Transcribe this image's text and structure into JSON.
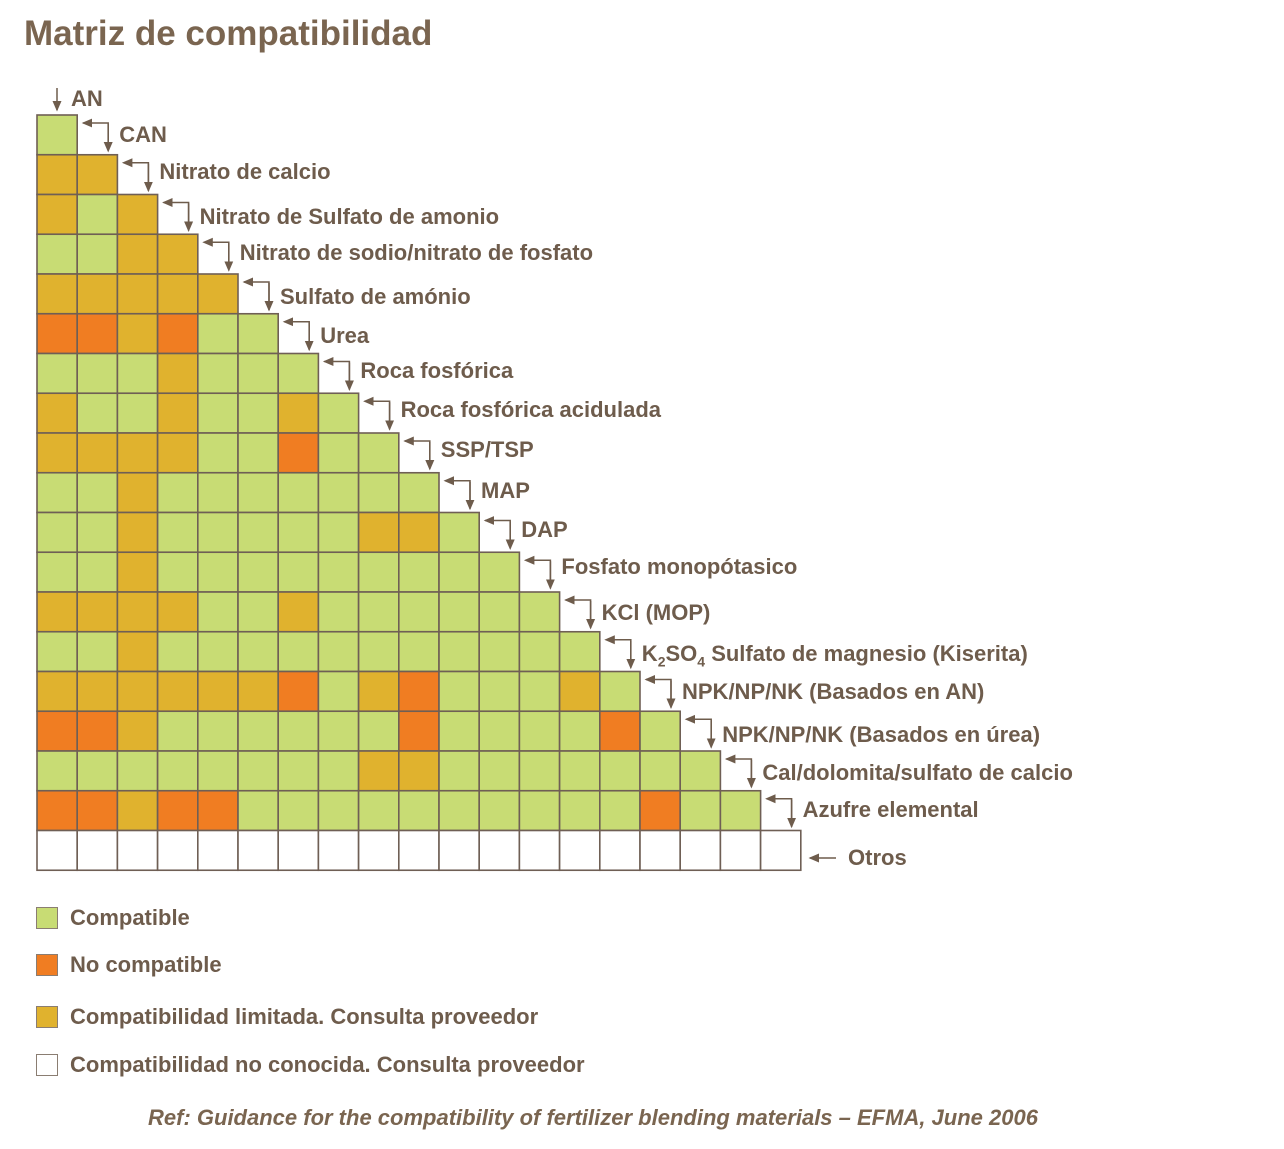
{
  "title": "Matriz de compatibilidad",
  "chart_data": {
    "type": "heatmap",
    "title": "Matriz de compatibilidad",
    "items": [
      "AN",
      "CAN",
      "Nitrato de calcio",
      "Nitrato de Sulfato de amonio",
      "Nitrato de sodio/nitrato de fosfato",
      "Sulfato de amónio",
      "Urea",
      "Roca fosfórica",
      "Roca fosfórica acidulada",
      "SSP/TSP",
      "MAP",
      "DAP",
      "Fosfato monopótasico",
      "KCl (MOP)",
      "K2SO4 Sulfato de magnesio (Kiserita)",
      "NPK/NP/NK (Basados en AN)",
      "NPK/NP/NK (Basados en úrea)",
      "Cal/dolomita/sulfato de calcio",
      "Azufre elemental",
      "Otros"
    ],
    "k2so4_label_parts": [
      {
        "t": "K"
      },
      {
        "t": "2",
        "sub": true
      },
      {
        "t": "SO"
      },
      {
        "t": "4",
        "sub": true
      },
      {
        "t": " Sulfato de magnesio (Kiserita)"
      }
    ],
    "legend": [
      {
        "code": "C",
        "label": "Compatible",
        "color": "#c8dc74"
      },
      {
        "code": "N",
        "label": "No compatible",
        "color": "#f07d22"
      },
      {
        "code": "L",
        "label": "Compatibilidad  limitada. Consulta proveedor",
        "color": "#e0b22e"
      },
      {
        "code": "U",
        "label": "Compatibilidad  no conocida. Consulta proveedor",
        "color": "#ffffff"
      }
    ],
    "matrix_note": "row i lists compatibility of item i with items 0..i-1",
    "rows": [
      [
        "C"
      ],
      [
        "L",
        "L"
      ],
      [
        "L",
        "C",
        "L"
      ],
      [
        "C",
        "C",
        "L",
        "L"
      ],
      [
        "L",
        "L",
        "L",
        "L",
        "L"
      ],
      [
        "N",
        "N",
        "L",
        "N",
        "C",
        "C"
      ],
      [
        "C",
        "C",
        "C",
        "L",
        "C",
        "C",
        "C"
      ],
      [
        "L",
        "C",
        "C",
        "L",
        "C",
        "C",
        "L",
        "C"
      ],
      [
        "L",
        "L",
        "L",
        "L",
        "C",
        "C",
        "N",
        "C",
        "C"
      ],
      [
        "C",
        "C",
        "L",
        "C",
        "C",
        "C",
        "C",
        "C",
        "C",
        "C"
      ],
      [
        "C",
        "C",
        "L",
        "C",
        "C",
        "C",
        "C",
        "C",
        "L",
        "L",
        "C"
      ],
      [
        "C",
        "C",
        "L",
        "C",
        "C",
        "C",
        "C",
        "C",
        "C",
        "C",
        "C",
        "C"
      ],
      [
        "L",
        "L",
        "L",
        "L",
        "C",
        "C",
        "L",
        "C",
        "C",
        "C",
        "C",
        "C",
        "C"
      ],
      [
        "C",
        "C",
        "L",
        "C",
        "C",
        "C",
        "C",
        "C",
        "C",
        "C",
        "C",
        "C",
        "C",
        "C"
      ],
      [
        "L",
        "L",
        "L",
        "L",
        "L",
        "L",
        "N",
        "C",
        "L",
        "N",
        "C",
        "C",
        "C",
        "L",
        "C"
      ],
      [
        "N",
        "N",
        "L",
        "C",
        "C",
        "C",
        "C",
        "C",
        "C",
        "N",
        "C",
        "C",
        "C",
        "C",
        "N",
        "C"
      ],
      [
        "C",
        "C",
        "C",
        "C",
        "C",
        "C",
        "C",
        "C",
        "L",
        "L",
        "C",
        "C",
        "C",
        "C",
        "C",
        "C",
        "C"
      ],
      [
        "N",
        "N",
        "L",
        "N",
        "N",
        "C",
        "C",
        "C",
        "C",
        "C",
        "C",
        "C",
        "C",
        "C",
        "C",
        "N",
        "C",
        "C"
      ],
      [
        "U",
        "U",
        "U",
        "U",
        "U",
        "U",
        "U",
        "U",
        "U",
        "U",
        "U",
        "U",
        "U",
        "U",
        "U",
        "U",
        "U",
        "U",
        "U"
      ]
    ]
  },
  "reference": "Ref: Guidance  for the compatibility  of fertilizer blending  materials – EFMA, June 2006"
}
